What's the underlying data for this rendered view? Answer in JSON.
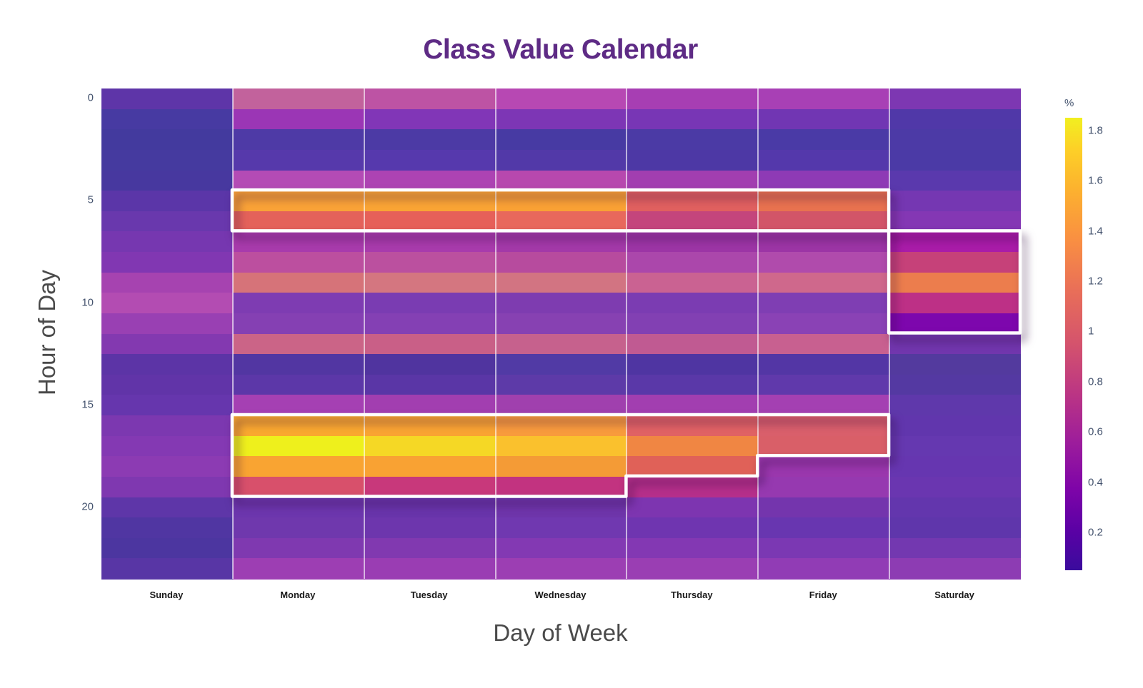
{
  "title": "Class Value Calendar",
  "colors": {
    "title": "#5e2b85",
    "tick_label": "#44536e",
    "axis_title": "#4a4a4a",
    "day_label": "#181818",
    "highlight_outline": "#ffffff"
  },
  "y_axis": {
    "title": "Hour of Day",
    "ticks": [
      0,
      5,
      10,
      15,
      20
    ]
  },
  "x_axis": {
    "title": "Day of Week"
  },
  "colorbar": {
    "unit": "%",
    "ticks": [
      1.8,
      1.6,
      1.4,
      1.2,
      1,
      0.8,
      0.6,
      0.4,
      0.2
    ],
    "min": 0.05,
    "max": 1.85
  },
  "chart_data": {
    "type": "heatmap",
    "title": "Class Value Calendar",
    "xlabel": "Day of Week",
    "ylabel": "Hour of Day",
    "unit": "%",
    "color_range": [
      0.05,
      1.85
    ],
    "colormap": "plasma",
    "categories": [
      "Sunday",
      "Monday",
      "Tuesday",
      "Wednesday",
      "Thursday",
      "Friday",
      "Saturday"
    ],
    "hours": [
      0,
      1,
      2,
      3,
      4,
      5,
      6,
      7,
      8,
      9,
      10,
      11,
      12,
      13,
      14,
      15,
      16,
      17,
      18,
      19,
      20,
      21,
      22,
      23
    ],
    "series": [
      {
        "name": "Sunday",
        "values": [
          0.31,
          0.21,
          0.18,
          0.19,
          0.2,
          0.29,
          0.37,
          0.44,
          0.48,
          0.63,
          0.69,
          0.57,
          0.49,
          0.3,
          0.33,
          0.36,
          0.46,
          0.5,
          0.53,
          0.47,
          0.32,
          0.25,
          0.23,
          0.29
        ]
      },
      {
        "name": "Monday",
        "values": [
          0.8,
          0.58,
          0.24,
          0.29,
          0.69,
          1.47,
          1.17,
          0.66,
          0.77,
          1.08,
          0.46,
          0.51,
          0.92,
          0.26,
          0.31,
          0.6,
          1.5,
          1.8,
          1.48,
          1.1,
          0.39,
          0.4,
          0.47,
          0.59
        ]
      },
      {
        "name": "Tuesday",
        "values": [
          0.75,
          0.5,
          0.23,
          0.29,
          0.65,
          1.48,
          1.18,
          0.66,
          0.76,
          1.06,
          0.45,
          0.51,
          0.9,
          0.25,
          0.3,
          0.62,
          1.48,
          1.68,
          1.47,
          0.97,
          0.37,
          0.39,
          0.48,
          0.58
        ]
      },
      {
        "name": "Wednesday",
        "values": [
          0.7,
          0.49,
          0.22,
          0.27,
          0.71,
          1.47,
          1.16,
          0.63,
          0.74,
          1.05,
          0.46,
          0.52,
          0.89,
          0.26,
          0.31,
          0.6,
          1.43,
          1.6,
          1.44,
          0.95,
          0.4,
          0.41,
          0.49,
          0.59
        ]
      },
      {
        "name": "Thursday",
        "values": [
          0.63,
          0.48,
          0.23,
          0.24,
          0.62,
          1.15,
          0.93,
          0.61,
          0.66,
          0.88,
          0.45,
          0.5,
          0.85,
          0.24,
          0.3,
          0.62,
          1.13,
          1.32,
          1.16,
          0.9,
          0.46,
          0.4,
          0.49,
          0.58
        ]
      },
      {
        "name": "Friday",
        "values": [
          0.63,
          0.42,
          0.22,
          0.28,
          0.54,
          1.22,
          1.05,
          0.62,
          0.68,
          0.9,
          0.47,
          0.52,
          0.88,
          0.26,
          0.33,
          0.61,
          1.05,
          1.05,
          0.56,
          0.55,
          0.42,
          0.37,
          0.45,
          0.56
        ]
      },
      {
        "name": "Saturday",
        "values": [
          0.46,
          0.25,
          0.22,
          0.22,
          0.31,
          0.43,
          0.5,
          0.85,
          0.96,
          1.26,
          0.92,
          0.62,
          0.39,
          0.26,
          0.27,
          0.33,
          0.34,
          0.36,
          0.36,
          0.38,
          0.35,
          0.33,
          0.41,
          0.53
        ]
      }
    ],
    "cell_colors": [
      [
        "#5e35a8",
        "#473aa2",
        "#433a9e",
        "#453a9f",
        "#47389f",
        "#5b36a8",
        "#6938ad",
        "#7637b0",
        "#8137b2",
        "#a643b0",
        "#b34cb2",
        "#9940b3",
        "#8339b0",
        "#5c34a6",
        "#6134a8",
        "#6636ad",
        "#7c38b0",
        "#8439b3",
        "#8c3bb3",
        "#7f38b0",
        "#5e36a8",
        "#5036a2",
        "#4c36a0",
        "#5836a5"
      ],
      [
        "#c2629c",
        "#9b36b5",
        "#4e3aa6",
        "#5639ab",
        "#b44bb5",
        "#f9a237",
        "#e4625a",
        "#a83bac",
        "#bc4f9f",
        "#d67379",
        "#7e3cb2",
        "#8540b3",
        "#cb6487",
        "#5236a2",
        "#5c37a8",
        "#a540b3",
        "#f9a82f",
        "#eef01c",
        "#f9a432",
        "#d8506b",
        "#6c36ad",
        "#6f38ad",
        "#7f39b0",
        "#9d3eb3"
      ],
      [
        "#bd53a4",
        "#8136b7",
        "#4c3aa5",
        "#5639ad",
        "#ad43b3",
        "#f9a434",
        "#e66059",
        "#a83bac",
        "#bb509f",
        "#d47680",
        "#7a3cb2",
        "#8440b4",
        "#c95f87",
        "#50349f",
        "#5a36a6",
        "#a23eb0",
        "#f9a432",
        "#f5d825",
        "#f9a233",
        "#c8387b",
        "#6834aa",
        "#6d36ad",
        "#8139b0",
        "#9a3db3"
      ],
      [
        "#b748b3",
        "#7d36b5",
        "#473aa3",
        "#5239a8",
        "#b748ae",
        "#f9a134",
        "#e8685c",
        "#a339a8",
        "#b74b9e",
        "#d27482",
        "#7e3cb0",
        "#8741b2",
        "#c6618d",
        "#513aa5",
        "#5d3aa8",
        "#a040ae",
        "#f89b3c",
        "#fac12d",
        "#f49b36",
        "#c23380",
        "#6e35aa",
        "#7038b0",
        "#8339b3",
        "#9c3eb3"
      ],
      [
        "#a73eb3",
        "#7836b5",
        "#4b3aa5",
        "#4d38a5",
        "#a23eb0",
        "#e0605f",
        "#c4457c",
        "#9c35a5",
        "#ab47ab",
        "#ca6292",
        "#7b3cb2",
        "#8240b3",
        "#c05a92",
        "#4f35a2",
        "#5a38a8",
        "#a23eb0",
        "#e06264",
        "#f08643",
        "#e06158",
        "#b52f8a",
        "#7d35b0",
        "#6f35b0",
        "#8338b3",
        "#9a3eb3"
      ],
      [
        "#a840b5",
        "#7136b3",
        "#4a3aa6",
        "#5438ab",
        "#8e3ab5",
        "#e8724f",
        "#d25568",
        "#9c35a5",
        "#b04bac",
        "#cf688c",
        "#7f3eb3",
        "#8a42b5",
        "#c86090",
        "#5336a5",
        "#6039ab",
        "#a440b2",
        "#d95f6b",
        "#d95f68",
        "#9a37ad",
        "#9639b0",
        "#7435ad",
        "#6836b0",
        "#7b38b3",
        "#913cb5"
      ],
      [
        "#7d37b2",
        "#5038a8",
        "#4c3aa6",
        "#4b3aa6",
        "#5a39ad",
        "#7537b2",
        "#8437b4",
        "#a91ca8",
        "#c64179",
        "#ec7d4d",
        "#bd3086",
        "#7d07ad",
        "#7136ad",
        "#533a9e",
        "#5439a2",
        "#5f38ab",
        "#6136ad",
        "#6538b0",
        "#6636b0",
        "#6a36b0",
        "#6336ad",
        "#5f36ab",
        "#7338b0",
        "#8d3cb3"
      ]
    ],
    "highlights": [
      {
        "name": "weekday-early-morning-block",
        "points": [
          [
            1,
            5
          ],
          [
            6,
            5
          ],
          [
            6,
            7
          ],
          [
            1,
            7
          ]
        ]
      },
      {
        "name": "saturday-midday-block",
        "points": [
          [
            6,
            7
          ],
          [
            7,
            7
          ],
          [
            7,
            12
          ],
          [
            6,
            12
          ]
        ]
      },
      {
        "name": "weekday-evening-block",
        "points": [
          [
            1,
            16
          ],
          [
            6,
            16
          ],
          [
            6,
            18
          ],
          [
            5,
            18
          ],
          [
            5,
            19
          ],
          [
            4,
            19
          ],
          [
            4,
            20
          ],
          [
            1,
            20
          ]
        ]
      }
    ],
    "legend_position": "right-colorbar",
    "grid": "white column separators"
  }
}
